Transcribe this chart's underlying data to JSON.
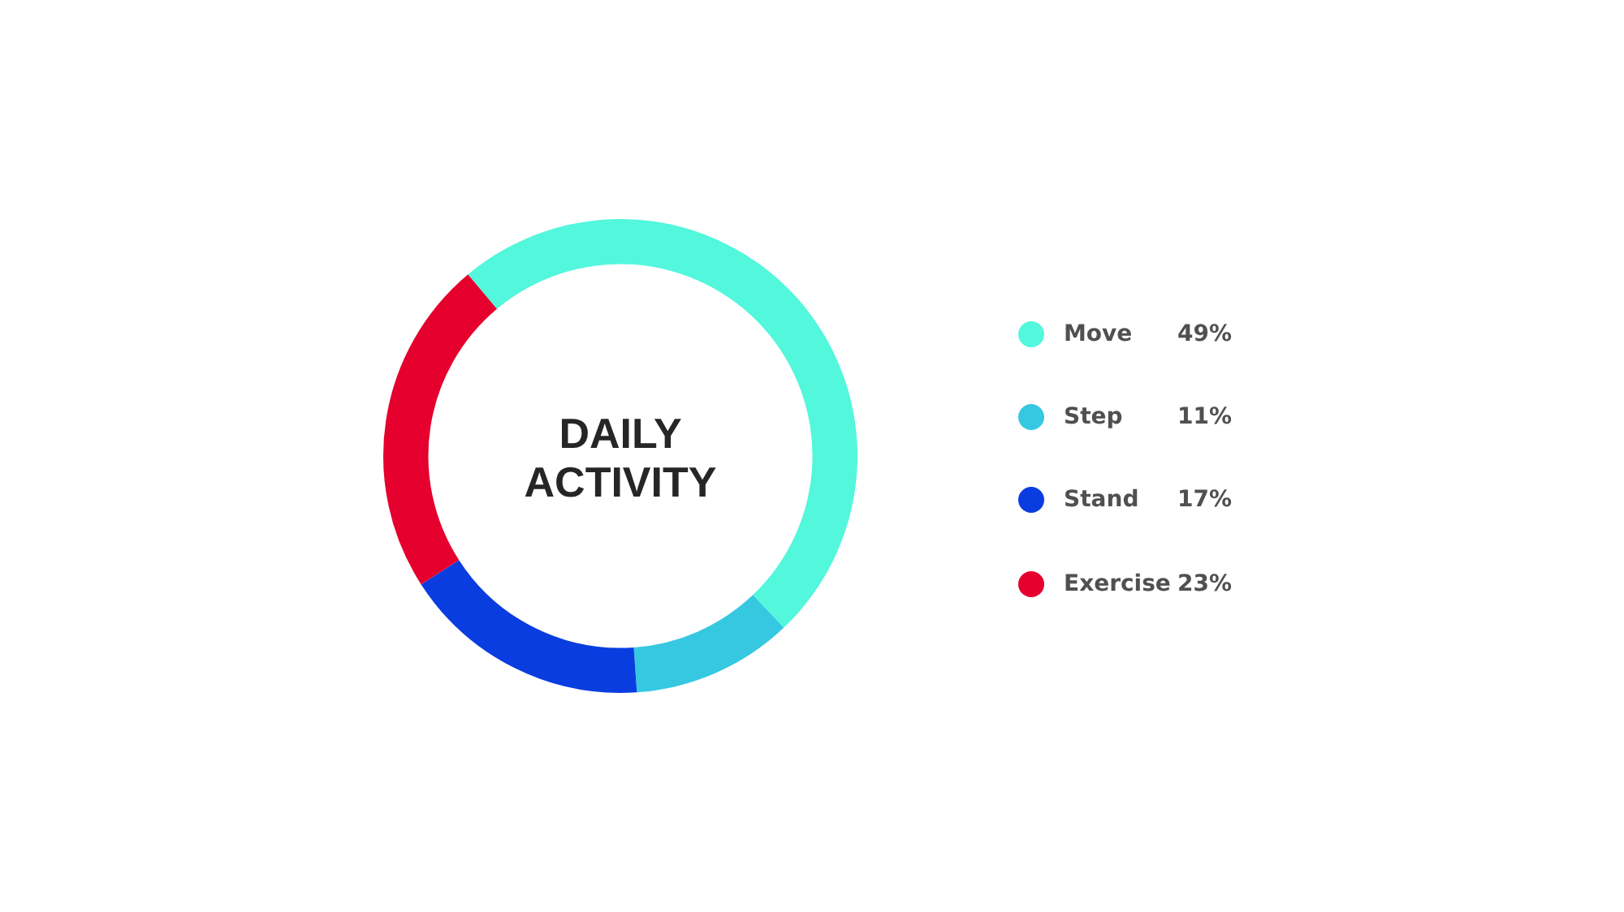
{
  "chart_data": {
    "type": "donut",
    "title": "DAILY ACTIVITY",
    "categories": [
      "Move",
      "Step",
      "Stand",
      "Exercise"
    ],
    "values": [
      49,
      11,
      17,
      23
    ],
    "colors": [
      "#52f7dc",
      "#36c8e0",
      "#0a3de0",
      "#e5002d"
    ],
    "value_labels": [
      "49%",
      "11%",
      "17%",
      "23%"
    ],
    "legend": "right"
  }
}
